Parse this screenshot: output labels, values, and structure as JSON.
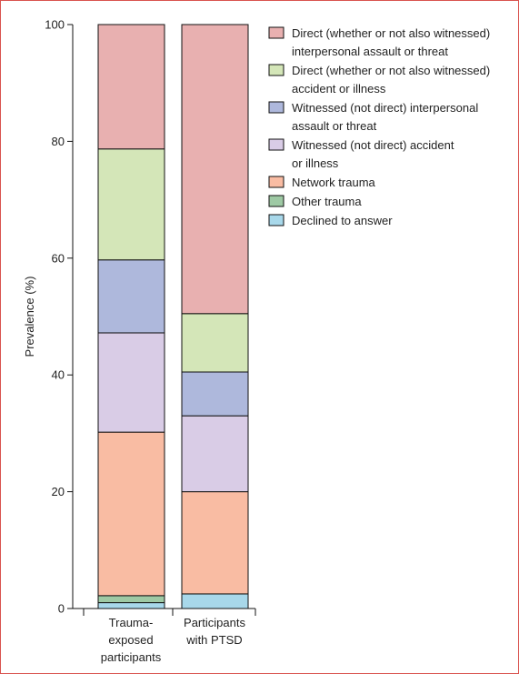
{
  "chart_data": {
    "type": "bar",
    "stacked": true,
    "ylabel": "Prevalence (%)",
    "ylim": [
      0,
      100
    ],
    "yticks": [
      "0",
      "20",
      "40",
      "60",
      "80",
      "100"
    ],
    "grid": false,
    "legend_position": "top-right",
    "categories": [
      [
        "Trauma-",
        "exposed",
        "participants"
      ],
      [
        "Participants",
        "with PTSD"
      ]
    ],
    "series": [
      {
        "name": [
          "Declined to answer"
        ],
        "color": "#a8d8ea",
        "values": [
          1.0,
          2.5
        ]
      },
      {
        "name": [
          "Other trauma"
        ],
        "color": "#9ec9a4",
        "values": [
          1.2,
          0.0
        ]
      },
      {
        "name": [
          "Network trauma"
        ],
        "color": "#f9bca3",
        "values": [
          28.0,
          17.5
        ]
      },
      {
        "name": [
          "Witnessed (not direct) accident",
          "or illness"
        ],
        "color": "#d9cce6",
        "values": [
          17.0,
          13.0
        ]
      },
      {
        "name": [
          "Witnessed (not direct) interpersonal",
          "assault or threat"
        ],
        "color": "#aeb8dc",
        "values": [
          12.5,
          7.5
        ]
      },
      {
        "name": [
          "Direct (whether or not also witnessed)",
          "accident or illness"
        ],
        "color": "#d4e6b8",
        "values": [
          19.0,
          10.0
        ]
      },
      {
        "name": [
          "Direct (whether or not also witnessed)",
          "interpersonal assault or threat"
        ],
        "color": "#e8b0b0",
        "values": [
          21.3,
          49.5
        ]
      }
    ],
    "legend_order": [
      6,
      5,
      4,
      3,
      2,
      1,
      0
    ]
  }
}
